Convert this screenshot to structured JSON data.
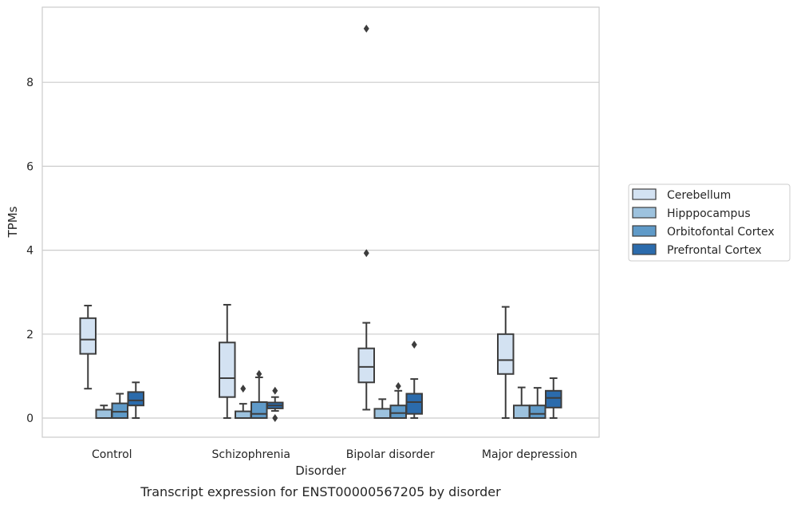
{
  "chart_data": {
    "type": "box",
    "title": "",
    "caption": "Transcript expression for ENST00000567205 by disorder",
    "xlabel": "Disorder",
    "ylabel": "TPMs",
    "ylim": [
      -0.45,
      9.75
    ],
    "yticks": [
      0,
      2,
      4,
      6,
      8
    ],
    "grid": "horizontal",
    "legend_position": "right",
    "categories": [
      "Control",
      "Schizophrenia",
      "Bipolar disorder",
      "Major depression"
    ],
    "series": [
      {
        "name": "Cerebellum",
        "color": "#d3e2f2",
        "boxes": [
          {
            "category": "Control",
            "min": 0.7,
            "q1": 1.53,
            "median": 1.87,
            "q3": 2.38,
            "max": 2.68,
            "outliers": []
          },
          {
            "category": "Schizophrenia",
            "min": 0.0,
            "q1": 0.5,
            "median": 0.95,
            "q3": 1.8,
            "max": 2.7,
            "outliers": []
          },
          {
            "category": "Bipolar disorder",
            "min": 0.2,
            "q1": 0.85,
            "median": 1.22,
            "q3": 1.66,
            "max": 2.27,
            "outliers": [
              3.93,
              9.28
            ]
          },
          {
            "category": "Major depression",
            "min": 0.0,
            "q1": 1.05,
            "median": 1.38,
            "q3": 2.0,
            "max": 2.65,
            "outliers": []
          }
        ]
      },
      {
        "name": "Hipppocampus",
        "color": "#9dc2de",
        "boxes": [
          {
            "category": "Control",
            "min": 0.0,
            "q1": 0.0,
            "median": 0.0,
            "q3": 0.2,
            "max": 0.3,
            "outliers": []
          },
          {
            "category": "Schizophrenia",
            "min": 0.0,
            "q1": 0.0,
            "median": 0.0,
            "q3": 0.16,
            "max": 0.34,
            "outliers": [
              0.7
            ]
          },
          {
            "category": "Bipolar disorder",
            "min": 0.0,
            "q1": 0.0,
            "median": 0.0,
            "q3": 0.22,
            "max": 0.45,
            "outliers": []
          },
          {
            "category": "Major depression",
            "min": 0.0,
            "q1": 0.0,
            "median": 0.0,
            "q3": 0.3,
            "max": 0.73,
            "outliers": []
          }
        ]
      },
      {
        "name": "Orbitofontal Cortex",
        "color": "#5f9ac8",
        "boxes": [
          {
            "category": "Control",
            "min": 0.0,
            "q1": 0.0,
            "median": 0.15,
            "q3": 0.35,
            "max": 0.58,
            "outliers": []
          },
          {
            "category": "Schizophrenia",
            "min": 0.0,
            "q1": 0.0,
            "median": 0.1,
            "q3": 0.38,
            "max": 0.97,
            "outliers": [
              1.05
            ]
          },
          {
            "category": "Bipolar disorder",
            "min": 0.0,
            "q1": 0.0,
            "median": 0.12,
            "q3": 0.3,
            "max": 0.65,
            "outliers": [
              0.76
            ]
          },
          {
            "category": "Major depression",
            "min": 0.0,
            "q1": 0.0,
            "median": 0.1,
            "q3": 0.3,
            "max": 0.72,
            "outliers": []
          }
        ]
      },
      {
        "name": "Prefrontal Cortex",
        "color": "#2b6bac",
        "boxes": [
          {
            "category": "Control",
            "min": 0.0,
            "q1": 0.3,
            "median": 0.42,
            "q3": 0.62,
            "max": 0.85,
            "outliers": []
          },
          {
            "category": "Schizophrenia",
            "min": 0.17,
            "q1": 0.23,
            "median": 0.3,
            "q3": 0.37,
            "max": 0.5,
            "outliers": [
              0.0,
              0.65
            ]
          },
          {
            "category": "Bipolar disorder",
            "min": 0.0,
            "q1": 0.1,
            "median": 0.38,
            "q3": 0.58,
            "max": 0.93,
            "outliers": [
              1.75
            ]
          },
          {
            "category": "Major depression",
            "min": 0.0,
            "q1": 0.25,
            "median": 0.48,
            "q3": 0.65,
            "max": 0.95,
            "outliers": []
          }
        ]
      }
    ]
  }
}
